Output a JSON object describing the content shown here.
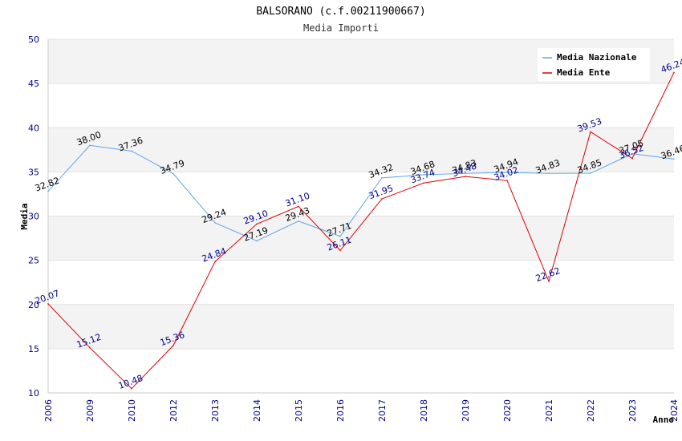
{
  "chart_data": {
    "type": "line",
    "title": "BALSORANO (c.f.00211900667)",
    "subtitle": "Media Importi",
    "xlabel": "Anno",
    "ylabel": "Media",
    "ylim": [
      10,
      50
    ],
    "yticks": [
      10,
      15,
      20,
      25,
      30,
      35,
      40,
      45,
      50
    ],
    "categories": [
      "2006",
      "2009",
      "2010",
      "2012",
      "2013",
      "2014",
      "2015",
      "2016",
      "2017",
      "2018",
      "2019",
      "2020",
      "2021",
      "2022",
      "2023",
      "2024"
    ],
    "legend_position": "top-right",
    "grid": "horizontal-bands",
    "series": [
      {
        "name": "Media Nazionale",
        "color": "#5da5e8",
        "label_color": "#000000",
        "values": [
          32.82,
          38.0,
          37.36,
          34.79,
          29.24,
          27.19,
          29.43,
          27.71,
          34.32,
          34.68,
          34.83,
          34.94,
          34.83,
          34.85,
          37.05,
          36.46
        ],
        "labels": [
          "32.82",
          "38.00",
          "37.36",
          "34.79",
          "29.24",
          "27.19",
          "29.43",
          "27.71",
          "34.32",
          "34.68",
          "34.83",
          "34.94",
          "34.83",
          "34.85",
          "37.05",
          "36.46"
        ]
      },
      {
        "name": "Media Ente",
        "color": "#e00000",
        "label_color": "#00008b",
        "values": [
          20.07,
          15.12,
          10.48,
          15.36,
          24.84,
          29.1,
          31.1,
          26.11,
          31.95,
          33.74,
          34.48,
          34.02,
          22.62,
          39.53,
          36.52,
          46.24
        ],
        "labels": [
          "20.07",
          "15.12",
          "10.48",
          "15.36",
          "24.84",
          "29.10",
          "31.10",
          "26.11",
          "31.95",
          "33.74",
          "34.48",
          "34.02",
          "22.62",
          "39.53",
          "36.52",
          "46.24"
        ]
      }
    ]
  }
}
